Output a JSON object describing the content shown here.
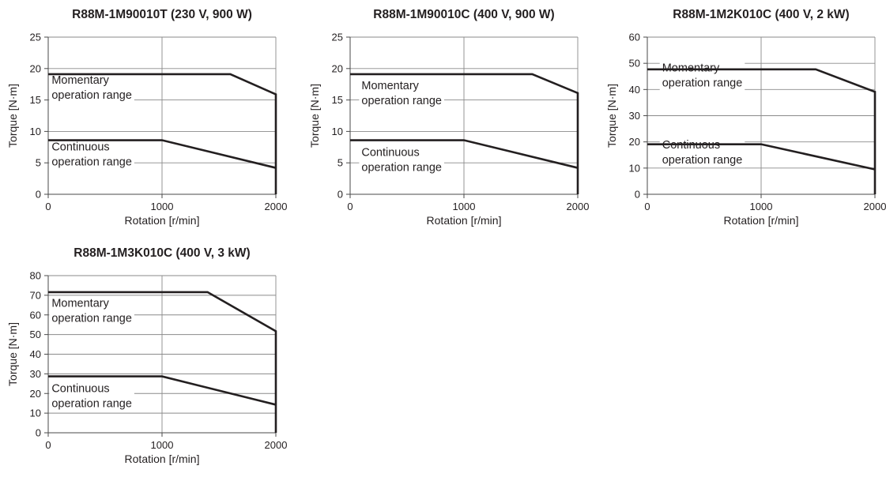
{
  "chart_data": [
    {
      "type": "line",
      "title": "R88M-1M90010T (230 V, 900 W)",
      "xlabel": "Rotation [r/min]",
      "ylabel": "Torque [N·m]",
      "xlim": [
        0,
        2000
      ],
      "ylim": [
        0,
        25
      ],
      "xticks": [
        0,
        1000,
        2000
      ],
      "yticks": [
        0,
        5,
        10,
        15,
        20,
        25
      ],
      "grid": true,
      "series": [
        {
          "x": [
            0,
            1600,
            2000,
            2000
          ],
          "y": [
            19.1,
            19.1,
            15.9,
            0
          ]
        },
        {
          "x": [
            0,
            1000,
            2000
          ],
          "y": [
            8.6,
            8.6,
            4.2
          ]
        }
      ],
      "annotations": [
        {
          "lines": [
            "Momentary",
            "operation range"
          ],
          "x": 30,
          "y": 15.2
        },
        {
          "lines": [
            "Continuous",
            "operation range"
          ],
          "x": 30,
          "y": 4.6
        }
      ]
    },
    {
      "type": "line",
      "title": "R88M-1M90010C (400 V, 900 W)",
      "xlabel": "Rotation [r/min]",
      "ylabel": "Torque [N·m]",
      "xlim": [
        0,
        2000
      ],
      "ylim": [
        0,
        25
      ],
      "xticks": [
        0,
        1000,
        2000
      ],
      "yticks": [
        0,
        5,
        10,
        15,
        20,
        25
      ],
      "grid": true,
      "series": [
        {
          "x": [
            0,
            1600,
            2000,
            2000
          ],
          "y": [
            19.1,
            19.1,
            16.1,
            0
          ]
        },
        {
          "x": [
            0,
            1000,
            2000
          ],
          "y": [
            8.6,
            8.6,
            4.2
          ]
        }
      ],
      "annotations": [
        {
          "lines": [
            "Momentary",
            "operation range"
          ],
          "x": 100,
          "y": 14.3
        },
        {
          "lines": [
            "Continuous",
            "operation range"
          ],
          "x": 100,
          "y": 3.7
        }
      ]
    },
    {
      "type": "line",
      "title": "R88M-1M2K010C (400 V, 2 kW)",
      "xlabel": "Rotation [r/min]",
      "ylabel": "Torque [N·m]",
      "xlim": [
        0,
        2000
      ],
      "ylim": [
        0,
        60
      ],
      "xticks": [
        0,
        1000,
        2000
      ],
      "yticks": [
        0,
        10,
        20,
        30,
        40,
        50,
        60
      ],
      "grid": true,
      "series": [
        {
          "x": [
            0,
            1480,
            2000,
            2000
          ],
          "y": [
            47.7,
            47.7,
            39.1,
            0
          ]
        },
        {
          "x": [
            0,
            1000,
            2000
          ],
          "y": [
            19.1,
            19.1,
            9.5
          ]
        }
      ],
      "annotations": [
        {
          "lines": [
            "Momentary",
            "operation range"
          ],
          "x": 130,
          "y": 41.2
        },
        {
          "lines": [
            "Continuous",
            "operation range"
          ],
          "x": 130,
          "y": 11.7
        }
      ]
    },
    {
      "type": "line",
      "title": "R88M-1M3K010C (400 V, 3 kW)",
      "xlabel": "Rotation [r/min]",
      "ylabel": "Torque [N·m]",
      "xlim": [
        0,
        2000
      ],
      "ylim": [
        0,
        80
      ],
      "xticks": [
        0,
        1000,
        2000
      ],
      "yticks": [
        0,
        10,
        20,
        30,
        40,
        50,
        60,
        70,
        80
      ],
      "grid": true,
      "series": [
        {
          "x": [
            0,
            1400,
            2000,
            2000
          ],
          "y": [
            71.6,
            71.6,
            51.7,
            0
          ]
        },
        {
          "x": [
            0,
            1000,
            2000
          ],
          "y": [
            28.7,
            28.7,
            14.3
          ]
        }
      ],
      "annotations": [
        {
          "lines": [
            "Momentary",
            "operation range"
          ],
          "x": 30,
          "y": 56.5
        },
        {
          "lines": [
            "Continuous",
            "operation range"
          ],
          "x": 30,
          "y": 13.0
        }
      ]
    }
  ]
}
